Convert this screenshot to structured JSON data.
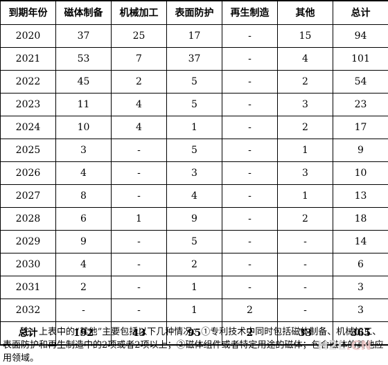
{
  "table": {
    "headers": [
      "到期年份",
      "磁体制备",
      "机械加工",
      "表面防护",
      "再生制造",
      "其他",
      "总计"
    ],
    "rows": [
      [
        "2020",
        "37",
        "25",
        "17",
        "-",
        "15",
        "94"
      ],
      [
        "2021",
        "53",
        "7",
        "37",
        "-",
        "4",
        "101"
      ],
      [
        "2022",
        "45",
        "2",
        "5",
        "-",
        "2",
        "54"
      ],
      [
        "2023",
        "11",
        "4",
        "5",
        "-",
        "3",
        "23"
      ],
      [
        "2024",
        "10",
        "4",
        "1",
        "-",
        "2",
        "17"
      ],
      [
        "2025",
        "3",
        "-",
        "5",
        "-",
        "1",
        "9"
      ],
      [
        "2026",
        "4",
        "-",
        "3",
        "-",
        "3",
        "10"
      ],
      [
        "2027",
        "8",
        "-",
        "4",
        "-",
        "1",
        "13"
      ],
      [
        "2028",
        "6",
        "1",
        "9",
        "-",
        "2",
        "18"
      ],
      [
        "2029",
        "9",
        "-",
        "5",
        "-",
        "-",
        "14"
      ],
      [
        "2030",
        "4",
        "-",
        "2",
        "-",
        "-",
        "6"
      ],
      [
        "2031",
        "2",
        "-",
        "1",
        "-",
        "-",
        "3"
      ],
      [
        "2032",
        "-",
        "-",
        "1",
        "2",
        "-",
        "3"
      ]
    ],
    "total": [
      "总计",
      "192",
      "43",
      "95",
      "2",
      "33",
      "365"
    ]
  },
  "note": "注：上表中的“其他”主要包括以下几种情况：①专利技术中同时包括磁体制备、机械加工、表面防护和再生制造中的2项或者2项以上；②磁体组件或者特定用途的磁体；包含磁体的其他应用领域。",
  "watermark": {
    "part1": "H2L",
    "part2": ".CN"
  }
}
